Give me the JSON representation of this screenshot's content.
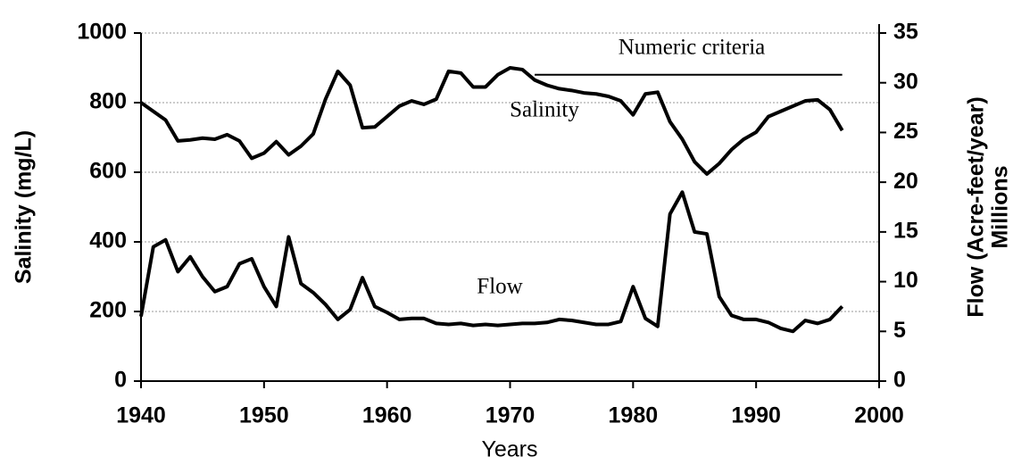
{
  "chart_data": {
    "type": "line",
    "xlabel": "Years",
    "ylabel": "Salinity (mg/L)",
    "y2label": [
      "Flow (Acre-feet/year)",
      "Millions"
    ],
    "x": [
      1940,
      1941,
      1942,
      1943,
      1944,
      1945,
      1946,
      1947,
      1948,
      1949,
      1950,
      1951,
      1952,
      1953,
      1954,
      1955,
      1956,
      1957,
      1958,
      1959,
      1960,
      1961,
      1962,
      1963,
      1964,
      1965,
      1966,
      1967,
      1968,
      1969,
      1970,
      1971,
      1972,
      1973,
      1974,
      1975,
      1976,
      1977,
      1978,
      1979,
      1980,
      1981,
      1982,
      1983,
      1984,
      1985,
      1986,
      1987,
      1988,
      1989,
      1990,
      1991,
      1992,
      1993,
      1994,
      1995,
      1996,
      1997
    ],
    "series": [
      {
        "name": "Salinity",
        "color": "#000000",
        "axis": "y",
        "values": [
          800,
          775,
          750,
          690,
          693,
          698,
          695,
          708,
          690,
          640,
          655,
          688,
          650,
          675,
          710,
          810,
          890,
          850,
          728,
          730,
          760,
          790,
          805,
          795,
          810,
          890,
          885,
          845,
          845,
          880,
          900,
          895,
          865,
          850,
          840,
          835,
          828,
          825,
          818,
          805,
          765,
          825,
          830,
          745,
          695,
          630,
          595,
          625,
          665,
          695,
          715,
          760,
          775,
          790,
          805,
          808,
          780,
          720
        ]
      },
      {
        "name": "Flow",
        "color": "#000000",
        "axis": "y2",
        "values": [
          6.5,
          13.5,
          14.2,
          11,
          12.5,
          10.5,
          9,
          9.5,
          11.8,
          12.3,
          9.5,
          7.5,
          14.5,
          9.8,
          8.9,
          7.7,
          6.2,
          7.2,
          10.4,
          7.5,
          6.9,
          6.2,
          6.3,
          6.3,
          5.8,
          5.7,
          5.8,
          5.6,
          5.7,
          5.6,
          5.7,
          5.8,
          5.8,
          5.9,
          6.2,
          6.1,
          5.9,
          5.7,
          5.7,
          6,
          9.5,
          6.3,
          5.5,
          16.8,
          19,
          15,
          14.8,
          8.5,
          6.6,
          6.2,
          6.2,
          5.9,
          5.3,
          5,
          6.1,
          5.8,
          6.2,
          7.5
        ]
      }
    ],
    "criteria": {
      "label": "Numeric criteria",
      "value": 880,
      "x": [
        1972,
        1997
      ]
    },
    "xlim": [
      1940,
      2000
    ],
    "xticks": [
      1940,
      1950,
      1960,
      1970,
      1980,
      1990,
      2000
    ],
    "ylim": [
      0,
      1000
    ],
    "yticks": [
      0,
      200,
      400,
      600,
      800,
      1000
    ],
    "y2lim": [
      0,
      35
    ],
    "y2ticks": [
      0,
      5,
      10,
      15,
      20,
      25,
      30,
      35
    ],
    "grid": true
  }
}
